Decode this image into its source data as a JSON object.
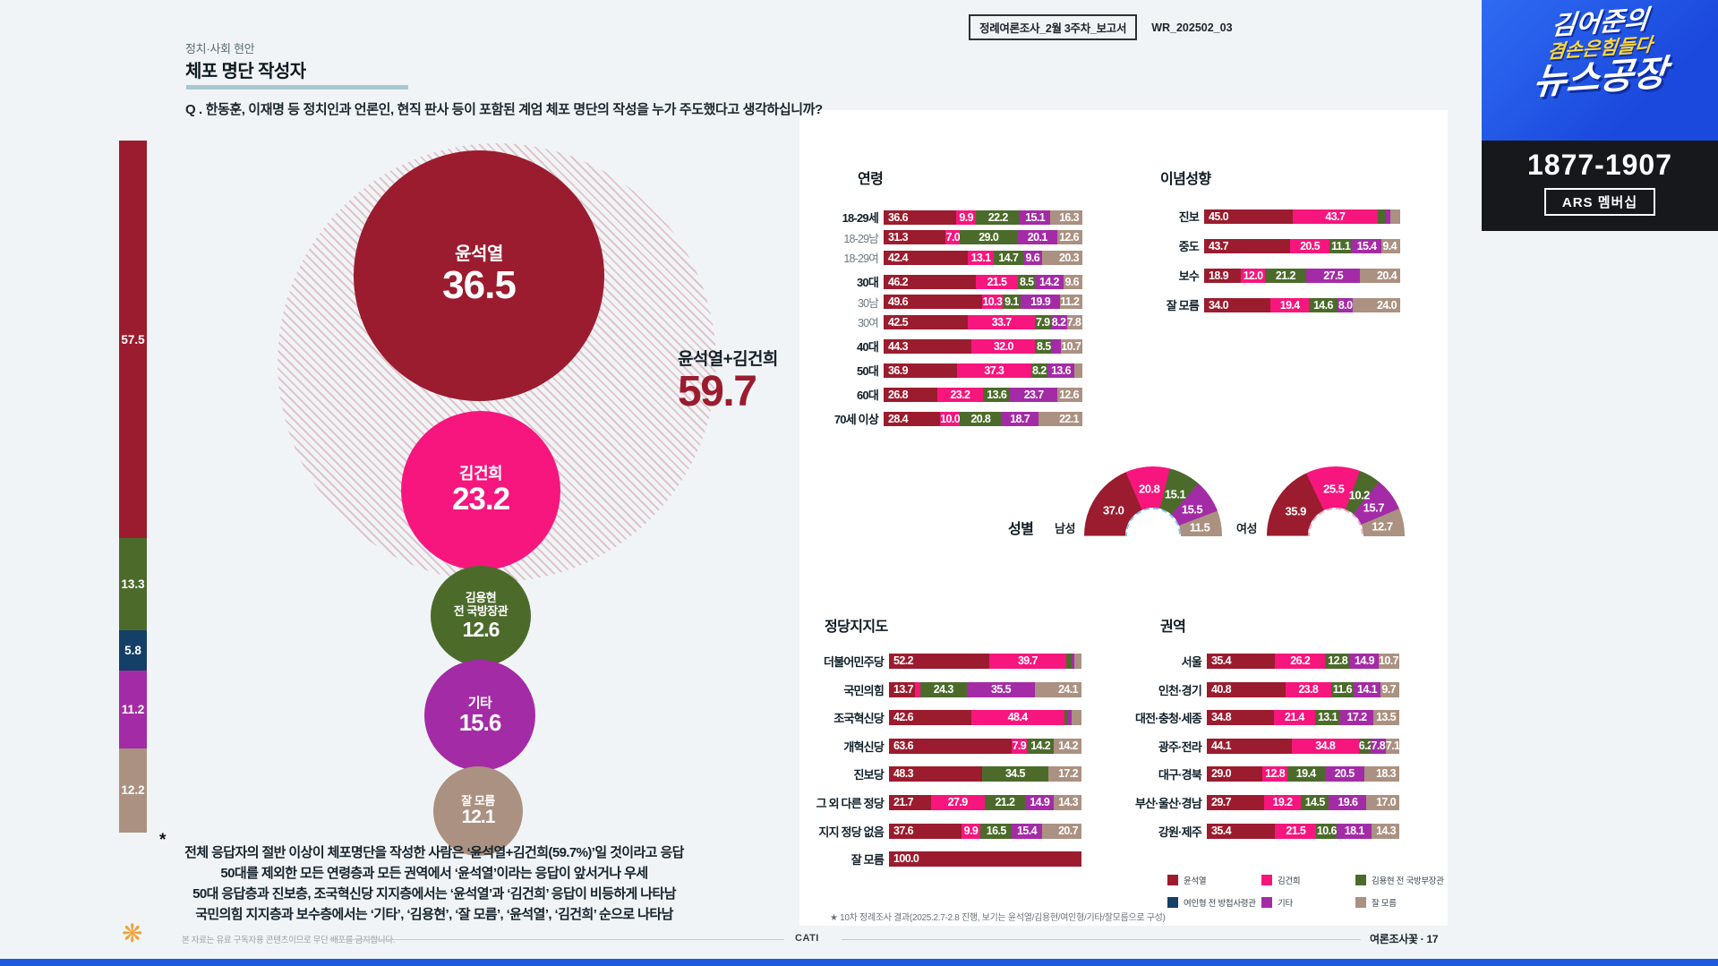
{
  "header": {
    "eyebrow": "정치·사회 현안",
    "title": "체포 명단 작성자",
    "question": "Q . 한동훈, 이재명 등 정치인과 언론인, 현직 판사 등이 포함된 계엄 체포 명단의 작성을 누가 주도했다고 생각하십니까?"
  },
  "report_tag": {
    "boxed": "정례여론조사_2월 3주차_보고서",
    "code": "WR_202502_03"
  },
  "brand": {
    "line1": "김어준의",
    "line2": "겸손은힘들다",
    "line3": "뉴스공장",
    "phone": "1877-1907",
    "membership": "ARS 멤버십"
  },
  "palette": {
    "yoon": "#9B1C2E",
    "kimk": "#F7167D",
    "kimy": "#4C6B2B",
    "yeo": "#143F66",
    "etc": "#A42BA6",
    "dk": "#AB9181"
  },
  "legend": {
    "rows": [
      [
        {
          "key": "yoon",
          "label": "윤석열"
        },
        {
          "key": "kimk",
          "label": "김건희"
        },
        {
          "key": "kimy",
          "label": "김용현 전 국방부장관"
        }
      ],
      [
        {
          "key": "yeo",
          "label": "여인형 전 방첩사령관"
        },
        {
          "key": "etc",
          "label": "기타"
        },
        {
          "key": "dk",
          "label": "잘 모름"
        }
      ]
    ]
  },
  "summary_lines": [
    "전체 응답자의 절반 이상이 체포명단을 작성한 사람은 ‘윤석열+김건희(59.7%)’일 것이라고 응답",
    "50대를 제외한 모든 연령층과 모든 권역에서 ‘윤석열’이라는 응답이 앞서거나 우세",
    "50대 응답층과 진보층, 조국혁신당 지지층에서는 ‘윤석열’과 ‘김건희’ 응답이 비등하게 나타남",
    "국민의힘 지지층과 보수층에서는 ‘기타’, ‘김용현’, ‘잘 모름’, ‘윤석열’, ‘김건희’ 순으로 나타남"
  ],
  "footnote": "★ 10차 정례조사 결과(2025.2.7-2.8 진행, 보기는 윤석열/김용현/여인형/기타/잘모름으로 구성)",
  "footer": {
    "disclaimer": "본 자료는 유료 구독자용 콘텐츠이므로 무단 배포를 금지합니다.",
    "method": "CATI",
    "page_label": "여론조사꽃 · 17"
  },
  "chart_data": [
    {
      "id": "bubble",
      "type": "bubble",
      "title": "체포 명단 작성자",
      "combined": {
        "label": "윤석열+김건희",
        "value": 59.7
      },
      "items": [
        {
          "key": "yoon",
          "label": "윤석열",
          "value": 36.5
        },
        {
          "key": "kimk",
          "label": "김건희",
          "value": 23.2
        },
        {
          "key": "kimy",
          "label": "김용현\n전 국방장관",
          "value": 12.6
        },
        {
          "key": "etc",
          "label": "기타",
          "value": 15.6
        },
        {
          "key": "dk",
          "label": "잘 모름",
          "value": 12.1
        }
      ]
    },
    {
      "id": "left_stack",
      "type": "bar",
      "stacked": true,
      "orientation": "vertical",
      "note": "*",
      "segments": [
        [
          "yoon",
          57.5
        ],
        [
          "kimy",
          13.3
        ],
        [
          "yeo",
          5.8
        ],
        [
          "etc",
          11.2
        ],
        [
          "dk",
          12.2
        ]
      ]
    },
    {
      "id": "age",
      "type": "bar",
      "stacked": true,
      "title": "연령",
      "rows": [
        {
          "label": "18-29세",
          "segments": [
            [
              "yoon",
              36.6
            ],
            [
              "kimk",
              9.9
            ],
            [
              "kimy",
              22.2
            ],
            [
              "etc",
              15.1
            ],
            [
              "dk",
              16.3
            ]
          ]
        },
        {
          "label": "18-29남",
          "sub": true,
          "segments": [
            [
              "yoon",
              31.3
            ],
            [
              "kimk",
              7.0
            ],
            [
              "kimy",
              29.0
            ],
            [
              "etc",
              20.1
            ],
            [
              "dk",
              12.6
            ]
          ]
        },
        {
          "label": "18-29여",
          "sub": true,
          "segments": [
            [
              "yoon",
              42.4
            ],
            [
              "kimk",
              13.1
            ],
            [
              "kimy",
              14.7
            ],
            [
              "etc",
              9.6
            ],
            [
              "dk",
              20.3
            ]
          ]
        },
        {
          "label": "30대",
          "gap": true,
          "segments": [
            [
              "yoon",
              46.2
            ],
            [
              "kimk",
              21.5
            ],
            [
              "kimy",
              8.5
            ],
            [
              "etc",
              14.2
            ],
            [
              "dk",
              9.6
            ]
          ]
        },
        {
          "label": "30남",
          "sub": true,
          "segments": [
            [
              "yoon",
              49.6
            ],
            [
              "kimk",
              10.3
            ],
            [
              "kimy",
              9.1
            ],
            [
              "etc",
              19.9
            ],
            [
              "dk",
              11.2
            ]
          ]
        },
        {
          "label": "30여",
          "sub": true,
          "segments": [
            [
              "yoon",
              42.5
            ],
            [
              "kimk",
              33.7
            ],
            [
              "kimy",
              7.9
            ],
            [
              "etc",
              8.2
            ],
            [
              "dk",
              7.8
            ]
          ]
        },
        {
          "label": "40대",
          "gap": true,
          "segments": [
            [
              "yoon",
              44.3
            ],
            [
              "kimk",
              32.0
            ],
            [
              "kimy",
              8.5
            ],
            [
              "etc",
              4.5,
              false
            ],
            [
              "dk",
              10.7
            ]
          ]
        },
        {
          "label": "50대",
          "gap": true,
          "segments": [
            [
              "yoon",
              36.9
            ],
            [
              "kimk",
              37.3
            ],
            [
              "kimy",
              8.2
            ],
            [
              "etc",
              13.6
            ],
            [
              "dk",
              4.0,
              false
            ]
          ]
        },
        {
          "label": "60대",
          "gap": true,
          "segments": [
            [
              "yoon",
              26.8
            ],
            [
              "kimk",
              23.2
            ],
            [
              "kimy",
              13.6
            ],
            [
              "etc",
              23.7
            ],
            [
              "dk",
              12.6
            ]
          ]
        },
        {
          "label": "70세 이상",
          "gap": true,
          "segments": [
            [
              "yoon",
              28.4
            ],
            [
              "kimk",
              10.0
            ],
            [
              "kimy",
              20.8
            ],
            [
              "etc",
              18.7
            ],
            [
              "dk",
              22.1
            ]
          ]
        }
      ]
    },
    {
      "id": "ideology",
      "type": "bar",
      "stacked": true,
      "title": "이념성향",
      "rows": [
        {
          "label": "진보",
          "segments": [
            [
              "yoon",
              45.0
            ],
            [
              "kimk",
              43.7
            ],
            [
              "kimy",
              4.0,
              false
            ],
            [
              "etc",
              2.5,
              false
            ],
            [
              "dk",
              4.8,
              false
            ]
          ]
        },
        {
          "label": "중도",
          "segments": [
            [
              "yoon",
              43.7
            ],
            [
              "kimk",
              20.5
            ],
            [
              "kimy",
              11.1
            ],
            [
              "etc",
              15.4
            ],
            [
              "dk",
              9.4
            ]
          ]
        },
        {
          "label": "보수",
          "segments": [
            [
              "yoon",
              18.9
            ],
            [
              "kimk",
              12.0
            ],
            [
              "kimy",
              21.2
            ],
            [
              "etc",
              27.5
            ],
            [
              "dk",
              20.4
            ]
          ]
        },
        {
          "label": "잘 모름",
          "segments": [
            [
              "yoon",
              34.0
            ],
            [
              "kimk",
              19.4
            ],
            [
              "kimy",
              14.6
            ],
            [
              "etc",
              8.0
            ],
            [
              "dk",
              24.0
            ]
          ]
        }
      ]
    },
    {
      "id": "gender",
      "type": "donut",
      "title": "성별",
      "charts": [
        {
          "label": "남성",
          "ring": "#85C7EC",
          "segments": [
            [
              "yoon",
              37.0
            ],
            [
              "kimk",
              20.8
            ],
            [
              "kimy",
              15.1
            ],
            [
              "etc",
              15.5
            ],
            [
              "dk",
              11.5
            ]
          ]
        },
        {
          "label": "여성",
          "ring": "#F4A9BC",
          "segments": [
            [
              "yoon",
              35.9
            ],
            [
              "kimk",
              25.5
            ],
            [
              "kimy",
              10.2
            ],
            [
              "etc",
              15.7
            ],
            [
              "dk",
              12.7
            ]
          ]
        }
      ]
    },
    {
      "id": "party",
      "type": "bar",
      "stacked": true,
      "title": "정당지지도",
      "rows": [
        {
          "label": "더불어민주당",
          "segments": [
            [
              "yoon",
              52.2
            ],
            [
              "kimk",
              39.7
            ],
            [
              "kimy",
              2.8,
              false
            ],
            [
              "etc",
              1.7,
              false
            ],
            [
              "dk",
              3.6,
              false
            ]
          ]
        },
        {
          "label": "국민의힘",
          "segments": [
            [
              "yoon",
              13.7
            ],
            [
              "kimk",
              2.4,
              false
            ],
            [
              "kimy",
              24.3
            ],
            [
              "etc",
              35.5
            ],
            [
              "dk",
              24.1
            ]
          ]
        },
        {
          "label": "조국혁신당",
          "segments": [
            [
              "yoon",
              42.6
            ],
            [
              "kimk",
              48.4
            ],
            [
              "kimy",
              2.2,
              false
            ],
            [
              "etc",
              1.8,
              false
            ],
            [
              "dk",
              5.0,
              false
            ]
          ]
        },
        {
          "label": "개혁신당",
          "segments": [
            [
              "yoon",
              63.6
            ],
            [
              "kimk",
              7.9
            ],
            [
              "kimy",
              14.2
            ],
            [
              "dk",
              14.2
            ]
          ]
        },
        {
          "label": "진보당",
          "segments": [
            [
              "yoon",
              48.3
            ],
            [
              "kimy",
              34.5
            ],
            [
              "dk",
              17.2
            ]
          ]
        },
        {
          "label": "그 외 다른 정당",
          "segments": [
            [
              "yoon",
              21.7
            ],
            [
              "kimk",
              27.9
            ],
            [
              "kimy",
              21.2
            ],
            [
              "etc",
              14.9
            ],
            [
              "dk",
              14.3
            ]
          ]
        },
        {
          "label": "지지 정당 없음",
          "segments": [
            [
              "yoon",
              37.6
            ],
            [
              "kimk",
              9.9
            ],
            [
              "kimy",
              16.5
            ],
            [
              "etc",
              15.4
            ],
            [
              "dk",
              20.7
            ]
          ]
        },
        {
          "label": "잘 모름",
          "segments": [
            [
              "yoon",
              100.0
            ]
          ]
        }
      ]
    },
    {
      "id": "region",
      "type": "bar",
      "stacked": true,
      "title": "권역",
      "rows": [
        {
          "label": "서울",
          "segments": [
            [
              "yoon",
              35.4
            ],
            [
              "kimk",
              26.2
            ],
            [
              "kimy",
              12.8
            ],
            [
              "etc",
              14.9
            ],
            [
              "dk",
              10.7
            ]
          ]
        },
        {
          "label": "인천·경기",
          "segments": [
            [
              "yoon",
              40.8
            ],
            [
              "kimk",
              23.8
            ],
            [
              "kimy",
              11.6
            ],
            [
              "etc",
              14.1
            ],
            [
              "dk",
              9.7
            ]
          ]
        },
        {
          "label": "대전·충청·세종",
          "segments": [
            [
              "yoon",
              34.8
            ],
            [
              "kimk",
              21.4
            ],
            [
              "kimy",
              13.1
            ],
            [
              "etc",
              17.2
            ],
            [
              "dk",
              13.5
            ]
          ]
        },
        {
          "label": "광주·전라",
          "segments": [
            [
              "yoon",
              44.1
            ],
            [
              "kimk",
              34.8
            ],
            [
              "kimy",
              6.2
            ],
            [
              "etc",
              7.8
            ],
            [
              "dk",
              7.1
            ]
          ]
        },
        {
          "label": "대구·경북",
          "segments": [
            [
              "yoon",
              29.0
            ],
            [
              "kimk",
              12.8
            ],
            [
              "kimy",
              19.4
            ],
            [
              "etc",
              20.5
            ],
            [
              "dk",
              18.3
            ]
          ]
        },
        {
          "label": "부산·울산·경남",
          "segments": [
            [
              "yoon",
              29.7
            ],
            [
              "kimk",
              19.2
            ],
            [
              "kimy",
              14.5
            ],
            [
              "etc",
              19.6
            ],
            [
              "dk",
              17.0
            ]
          ]
        },
        {
          "label": "강원·제주",
          "segments": [
            [
              "yoon",
              35.4
            ],
            [
              "kimk",
              21.5
            ],
            [
              "kimy",
              10.6
            ],
            [
              "etc",
              18.1
            ],
            [
              "dk",
              14.3
            ]
          ]
        }
      ]
    }
  ]
}
